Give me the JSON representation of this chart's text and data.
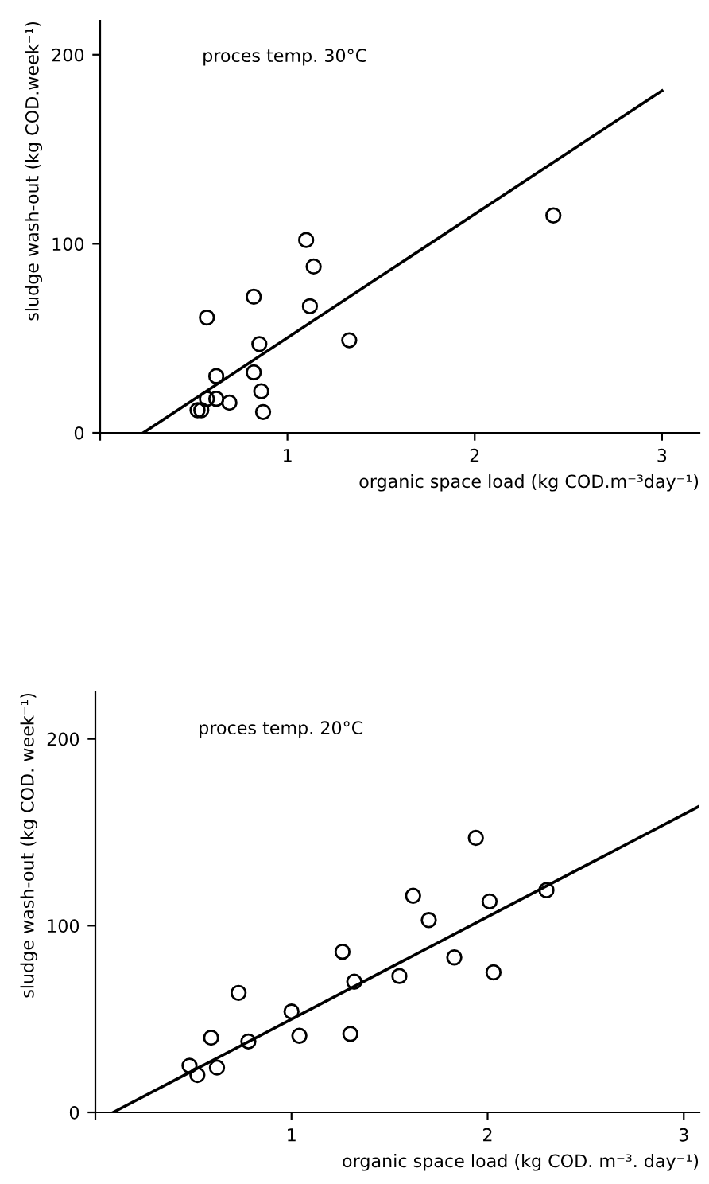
{
  "chart_data": [
    {
      "type": "scatter",
      "xlabel": "organic space load (kg COD.m⁻³day⁻¹)",
      "ylabel": "sludge wash-out (kg COD.week⁻¹)",
      "annotations": [
        "proces temp. 30°C"
      ],
      "xlim": [
        0,
        3.2
      ],
      "ylim": [
        0,
        218
      ],
      "xticks": [
        {
          "value": 0,
          "label": null
        },
        1,
        2,
        3
      ],
      "yticks": [
        0,
        100,
        200
      ],
      "grid": false,
      "legend": false,
      "series": [
        {
          "color": "#000000",
          "marker": "circle",
          "x": [
            0.57,
            0.52,
            0.54,
            0.57,
            0.62,
            0.62,
            0.69,
            0.82,
            0.82,
            0.85,
            0.86,
            0.87,
            1.1,
            1.14,
            1.12,
            1.33,
            2.42
          ],
          "values": [
            18,
            12,
            12,
            61,
            30,
            18,
            16,
            72,
            32,
            47,
            22,
            11,
            102,
            88,
            67,
            49,
            115
          ]
        },
        {
          "type": "line",
          "color": "#000000",
          "line_style": "solid",
          "x": [
            0.23,
            3.0
          ],
          "values": [
            0,
            181
          ]
        }
      ]
    },
    {
      "type": "scatter",
      "xlabel": "organic space load (kg COD. m⁻³. day⁻¹)",
      "ylabel": "sludge wash-out (kg COD. week⁻¹)",
      "annotations": [
        "proces temp. 20°C"
      ],
      "xlim": [
        0,
        3.08
      ],
      "ylim": [
        0,
        225
      ],
      "xticks": [
        {
          "value": 0,
          "label": null
        },
        1,
        2,
        3
      ],
      "yticks": [
        0,
        100,
        200
      ],
      "grid": false,
      "legend": false,
      "series": [
        {
          "color": "#000000",
          "marker": "circle",
          "x": [
            0.48,
            0.52,
            0.62,
            0.59,
            0.73,
            0.78,
            1.0,
            1.04,
            1.26,
            1.32,
            1.3,
            1.55,
            1.62,
            1.7,
            1.83,
            1.94,
            2.01,
            2.03,
            2.3
          ],
          "values": [
            25,
            20,
            24,
            40,
            64,
            38,
            54,
            41,
            86,
            70,
            42,
            73,
            116,
            103,
            83,
            147,
            113,
            75,
            119
          ]
        },
        {
          "type": "line",
          "color": "#000000",
          "line_style": "solid",
          "x": [
            0.09,
            3.08
          ],
          "values": [
            0,
            164
          ]
        }
      ]
    }
  ]
}
